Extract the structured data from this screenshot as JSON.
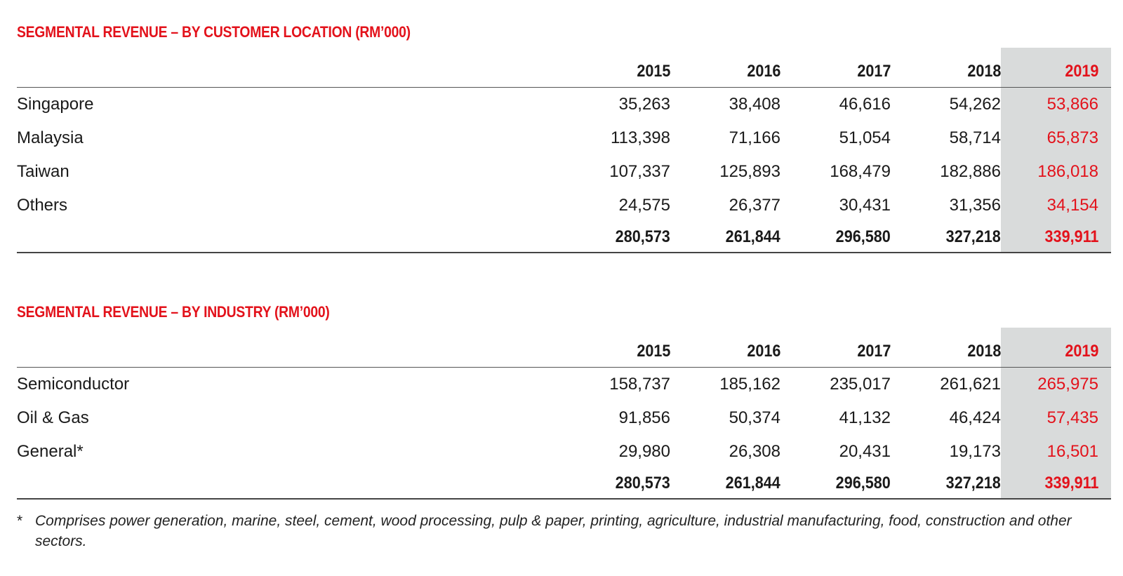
{
  "chart_data": [
    {
      "type": "table",
      "title": "SEGMENTAL REVENUE – BY CUSTOMER LOCATION (RM’000)",
      "columns": [
        "2015",
        "2016",
        "2017",
        "2018",
        "2019"
      ],
      "highlight_column": "2019",
      "rows": [
        {
          "label": "Singapore",
          "values": [
            "35,263",
            "38,408",
            "46,616",
            "54,262",
            "53,866"
          ]
        },
        {
          "label": "Malaysia",
          "values": [
            "113,398",
            "71,166",
            "51,054",
            "58,714",
            "65,873"
          ]
        },
        {
          "label": "Taiwan",
          "values": [
            "107,337",
            "125,893",
            "168,479",
            "182,886",
            "186,018"
          ]
        },
        {
          "label": "Others",
          "values": [
            "24,575",
            "26,377",
            "30,431",
            "31,356",
            "34,154"
          ]
        }
      ],
      "total": [
        "280,573",
        "261,844",
        "296,580",
        "327,218",
        "339,911"
      ]
    },
    {
      "type": "table",
      "title": "SEGMENTAL REVENUE – BY INDUSTRY (RM’000)",
      "columns": [
        "2015",
        "2016",
        "2017",
        "2018",
        "2019"
      ],
      "highlight_column": "2019",
      "rows": [
        {
          "label": "Semiconductor",
          "values": [
            "158,737",
            "185,162",
            "235,017",
            "261,621",
            "265,975"
          ]
        },
        {
          "label": "Oil & Gas",
          "values": [
            "91,856",
            "50,374",
            "41,132",
            "46,424",
            "57,435"
          ]
        },
        {
          "label": "General*",
          "values": [
            "29,980",
            "26,308",
            "20,431",
            "19,173",
            "16,501"
          ]
        }
      ],
      "total": [
        "280,573",
        "261,844",
        "296,580",
        "327,218",
        "339,911"
      ]
    }
  ],
  "footnote": {
    "marker": "*",
    "text": "Comprises power generation, marine, steel, cement, wood processing, pulp & paper, printing, agriculture, industrial manufacturing, food, construction and other sectors."
  },
  "colors": {
    "accent": "#e3121b",
    "highlight_bg": "#d9dbdb",
    "text": "#1a1a1a"
  }
}
